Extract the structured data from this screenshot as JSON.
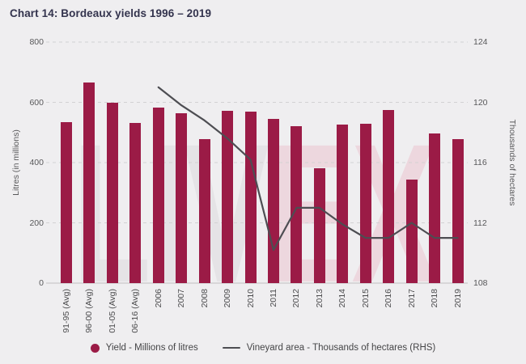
{
  "title": "Chart 14: Bordeaux yields 1996 – 2019",
  "watermark": {
    "left": "LIV",
    "right": "EX"
  },
  "colors": {
    "background": "#efeef0",
    "bar": "#9b1b46",
    "line": "#4d4d52",
    "title": "#33334d",
    "axis_text": "#58585a",
    "x_label_text": "#4c4c4e",
    "legend_text": "#454547",
    "grid_dashed": "#d2d1d3",
    "baseline": "#c9c8ca",
    "watermark_gray": "#e5e3e6",
    "watermark_pink": "#edd7de"
  },
  "chart_data": {
    "type": "bar+line combo",
    "title": "Chart 14: Bordeaux yields 1996 – 2019",
    "categories": [
      "91-95 (Avg)",
      "96-00 (Avg)",
      "01-05 (Avg)",
      "06-16 (Avg)",
      "2006",
      "2007",
      "2008",
      "2009",
      "2010",
      "2011",
      "2012",
      "2013",
      "2014",
      "2015",
      "2016",
      "2017",
      "2018",
      "2019"
    ],
    "series": [
      {
        "name": "Yield - Millions of litres",
        "type": "bar",
        "axis": "left",
        "values": [
          534,
          665,
          600,
          531,
          583,
          565,
          477,
          572,
          569,
          544,
          520,
          381,
          526,
          529,
          575,
          344,
          497,
          478
        ]
      },
      {
        "name": "Vineyard area - Thousands of hectares (RHS)",
        "type": "line",
        "axis": "right",
        "start_category_index": 4,
        "values": [
          121.0,
          119.8,
          118.8,
          117.6,
          116.2,
          110.2,
          113.0,
          113.0,
          111.9,
          111.0,
          111.0,
          112.0,
          111.0,
          111.0
        ]
      }
    ],
    "left_axis": {
      "label": "Litres (in millions)",
      "ticks": [
        0,
        200,
        400,
        600,
        800
      ],
      "range": [
        0,
        800
      ]
    },
    "right_axis": {
      "label": "Thousands of hectares",
      "ticks": [
        108,
        112,
        116,
        120,
        124
      ],
      "range": [
        108,
        124
      ]
    },
    "x_axis": {
      "tick_rotation_deg": -90
    },
    "grid": "horizontal dashed",
    "legend_position": "bottom center"
  }
}
